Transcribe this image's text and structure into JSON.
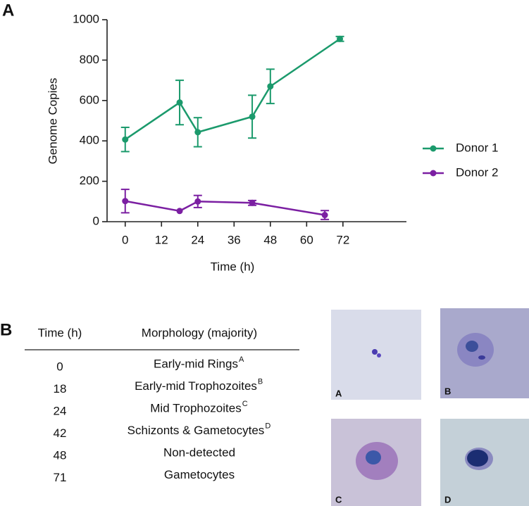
{
  "panels": [
    "A",
    "B"
  ],
  "chart_data": {
    "type": "line",
    "x_label": "Time (h)",
    "y_label": "Genome Copies",
    "xlim": [
      -6,
      93
    ],
    "xticks": [
      0,
      12,
      24,
      36,
      48,
      60,
      72
    ],
    "ylim": [
      0,
      1000
    ],
    "yticks": [
      0,
      200,
      400,
      600,
      800,
      1000
    ],
    "legend": "right",
    "series": [
      {
        "name": "Donor 1",
        "color": "#1b9a6c",
        "x": [
          0,
          18,
          24,
          42,
          48,
          71
        ],
        "values": [
          407,
          590,
          443,
          520,
          670,
          905
        ],
        "errors": [
          60,
          110,
          72,
          106,
          85,
          12
        ]
      },
      {
        "name": "Donor 2",
        "color": "#7b1fa2",
        "x": [
          0,
          18,
          24,
          42,
          66
        ],
        "values": [
          102,
          53,
          100,
          93,
          33
        ],
        "errors": [
          58,
          0,
          30,
          12,
          22
        ]
      }
    ]
  },
  "table": {
    "header": [
      "Time (h)",
      "Morphology (majority)"
    ],
    "rows": [
      {
        "time": "0",
        "morphology": "Early-mid Rings",
        "note": "A"
      },
      {
        "time": "18",
        "morphology": "Early-mid Trophozoites",
        "note": "B"
      },
      {
        "time": "24",
        "morphology": "Mid Trophozoites",
        "note": "C"
      },
      {
        "time": "42",
        "morphology": "Schizonts & Gametocytes",
        "note": "D"
      },
      {
        "time": "48",
        "morphology": "Non-detected"
      },
      {
        "time": "71",
        "morphology": "Gametocytes"
      }
    ]
  },
  "images": {
    "labels": [
      "A",
      "B",
      "C",
      "D"
    ]
  }
}
